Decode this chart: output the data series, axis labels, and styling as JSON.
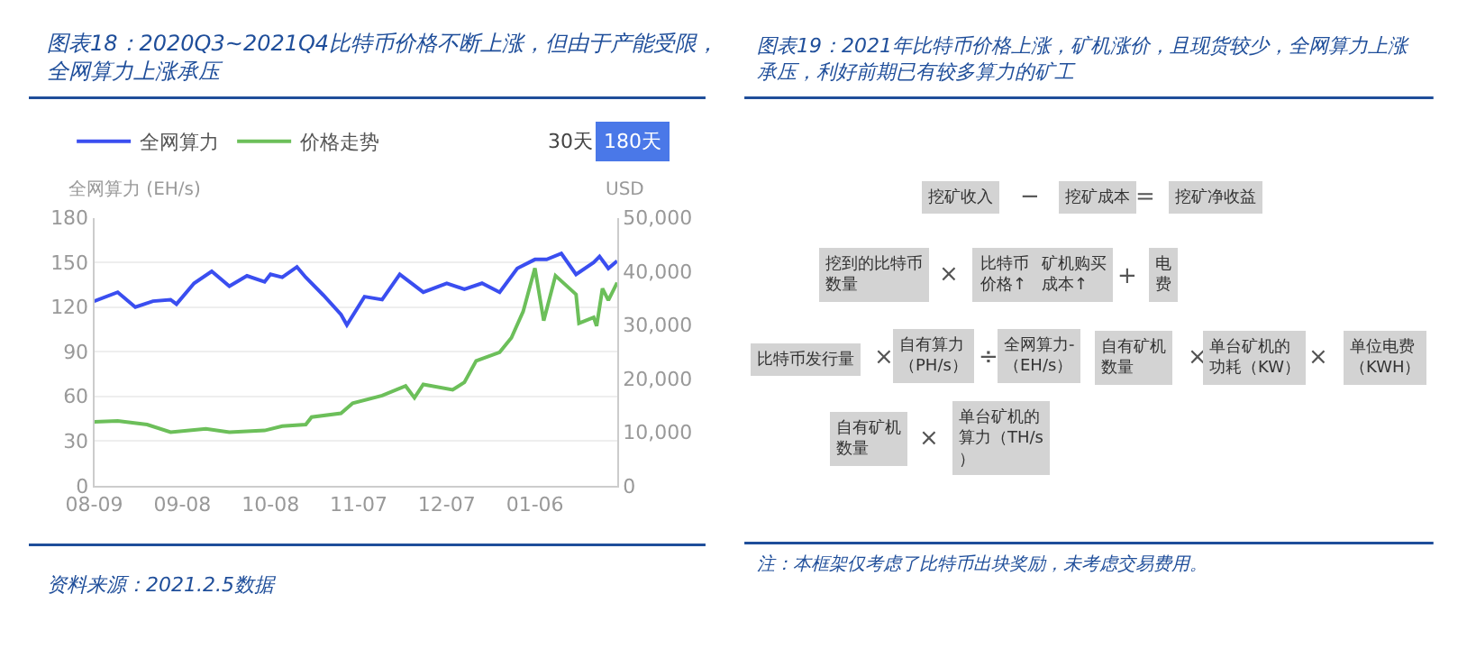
{
  "chart_data": [
    {
      "type": "line",
      "title": "图表18：2020Q3~2021Q4比特币价格不断上涨，但由于产能受限，全网算力上涨承压",
      "ylabel": "全网算力 (EH/s)",
      "y2label": "USD",
      "xlim": [
        "2020-08-09",
        "2021-02-03"
      ],
      "xticks": [
        {
          "value": "2020-08-09",
          "label": "08-09"
        },
        {
          "value": "2020-09-08",
          "label": "09-08"
        },
        {
          "value": "2020-10-08",
          "label": "10-08"
        },
        {
          "value": "2020-11-07",
          "label": "11-07"
        },
        {
          "value": "2020-12-07",
          "label": "12-07"
        },
        {
          "value": "2021-01-06",
          "label": "01-06"
        }
      ],
      "ylim": [
        0,
        180
      ],
      "yticks": [
        0,
        30,
        60,
        90,
        120,
        150,
        180
      ],
      "y2lim": [
        0,
        50000
      ],
      "y2ticks": [
        0,
        {
          "value": 10000,
          "label": "10,000"
        },
        {
          "value": 20000,
          "label": "20,000"
        },
        {
          "value": 30000,
          "label": "30,000"
        },
        {
          "value": 40000,
          "label": "40,000"
        },
        {
          "value": 50000,
          "label": "50,000"
        }
      ],
      "grid": "y",
      "legend": "top left",
      "line_style": "solid",
      "series": [
        {
          "name": "全网算力",
          "color": "#3a4ef0",
          "x": [
            "2020-08-09",
            "2020-08-17",
            "2020-08-23",
            "2020-08-29",
            "2020-09-04",
            "2020-09-06",
            "2020-09-12",
            "2020-09-18",
            "2020-09-24",
            "2020-09-30",
            "2020-10-06",
            "2020-10-08",
            "2020-10-12",
            "2020-10-17",
            "2020-10-20",
            "2020-10-26",
            "2020-11-01",
            "2020-11-03",
            "2020-11-09",
            "2020-11-15",
            "2020-11-21",
            "2020-11-29",
            "2020-12-07",
            "2020-12-13",
            "2020-12-19",
            "2020-12-25",
            "2020-12-31",
            "2021-01-06",
            "2021-01-10",
            "2021-01-15",
            "2021-01-20",
            "2021-01-26",
            "2021-01-28",
            "2021-01-31",
            "2021-02-03"
          ],
          "values": [
            124,
            130,
            120,
            124,
            125,
            122,
            136,
            144,
            134,
            141,
            137,
            142,
            140,
            147,
            140,
            128,
            115,
            108,
            127,
            125,
            142,
            130,
            136,
            132,
            136,
            130,
            146,
            152,
            152,
            156,
            142,
            150,
            154,
            146,
            151
          ]
        },
        {
          "name": "价格走势",
          "color": "#6cbf5a",
          "axis": "y2",
          "x": [
            "2020-08-09",
            "2020-08-17",
            "2020-08-27",
            "2020-09-04",
            "2020-09-16",
            "2020-09-24",
            "2020-10-06",
            "2020-10-12",
            "2020-10-20",
            "2020-10-22",
            "2020-11-01",
            "2020-11-05",
            "2020-11-15",
            "2020-11-23",
            "2020-11-26",
            "2020-11-29",
            "2020-12-09",
            "2020-12-13",
            "2020-12-17",
            "2020-12-25",
            "2020-12-29",
            "2021-01-02",
            "2021-01-06",
            "2021-01-09",
            "2021-01-13",
            "2021-01-20",
            "2021-01-21",
            "2021-01-26",
            "2021-01-27",
            "2021-01-29",
            "2021-01-31",
            "2021-02-03"
          ],
          "values": [
            11900,
            12100,
            11400,
            10000,
            10600,
            10000,
            10300,
            11100,
            11400,
            12800,
            13500,
            15400,
            16800,
            18600,
            16400,
            18900,
            17900,
            19300,
            23300,
            24900,
            27600,
            32500,
            40600,
            30800,
            39200,
            35700,
            30300,
            31400,
            29800,
            36800,
            34600,
            37900
          ]
        }
      ],
      "annotations": [
        "30天",
        "180天",
        "资料来源：2021.2.5数据"
      ]
    },
    {
      "type": "other",
      "title": "图表19：2021年比特币价格上涨，矿机涨价，且现货较少，全网算力上涨承压，利好前期已有较多算力的矿工",
      "annotations": [
        "挖矿收入",
        "−",
        "挖矿成本",
        "=",
        "挖矿净收益",
        "挖到的比特币数量",
        "×",
        "比特币价格↑",
        "矿机购买成本↑",
        "+",
        "电费",
        "比特币发行量",
        "×",
        "自有算力（PH/s）",
        "÷",
        "全网算力-（EH/s）",
        "自有矿机数量",
        "×",
        "单台矿机的功耗（KW）",
        "×",
        "单位电费（KWH）",
        "自有矿机数量",
        "×",
        "单台矿机的算力（TH/s）",
        "注：本框架仅考虑了比特币出块奖励，未考虑交易费用。"
      ]
    }
  ]
}
